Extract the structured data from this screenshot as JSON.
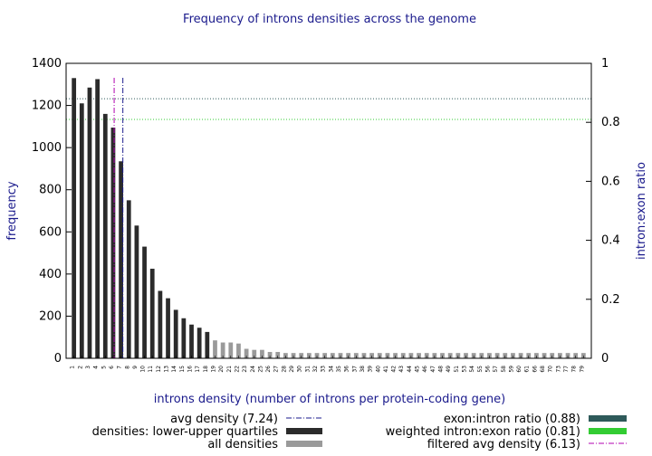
{
  "chart_data": {
    "type": "bar",
    "title": "Frequency of introns densities across the genome",
    "xlabel": "introns density (number of introns per protein-coding gene)",
    "ylabel": "frequency",
    "y2label": "intron:exon ratio",
    "ylim": [
      0,
      1400
    ],
    "y2lim": [
      0,
      1
    ],
    "yticks": [
      "0",
      "200",
      "400",
      "600",
      "800",
      "1000",
      "1200",
      "1400"
    ],
    "y2ticks": [
      "0",
      "0.2",
      "0.4",
      "0.6",
      "0.8",
      "1"
    ],
    "categories": [
      "1",
      "2",
      "3",
      "4",
      "5",
      "6",
      "7",
      "8",
      "9",
      "10",
      "11",
      "12",
      "13",
      "14",
      "15",
      "16",
      "17",
      "18",
      "19",
      "20",
      "21",
      "22",
      "23",
      "24",
      "25",
      "26",
      "27",
      "28",
      "29",
      "30",
      "31",
      "32",
      "33",
      "34",
      "35",
      "36",
      "37",
      "38",
      "39",
      "40",
      "41",
      "42",
      "43",
      "44",
      "45",
      "46",
      "47",
      "48",
      "49",
      "51",
      "53",
      "54",
      "55",
      "56",
      "57",
      "58",
      "59",
      "60",
      "61",
      "66",
      "68",
      "70",
      "73",
      "77",
      "78",
      "79"
    ],
    "values": [
      1330,
      1210,
      1285,
      1325,
      1160,
      1095,
      935,
      750,
      630,
      530,
      425,
      320,
      285,
      230,
      190,
      160,
      145,
      125,
      85,
      75,
      75,
      70,
      45,
      40,
      40,
      30,
      30,
      25,
      25,
      25,
      25,
      25,
      25,
      25,
      25,
      25,
      25,
      25,
      25,
      25,
      25,
      25,
      25,
      25,
      25,
      25,
      25,
      25,
      25,
      25,
      25,
      25,
      25,
      25,
      25,
      25,
      25,
      25,
      25,
      25,
      25,
      25,
      25,
      25,
      25,
      25
    ],
    "quartile_range": [
      "1",
      "18"
    ],
    "avg_density": 7.24,
    "filtered_avg_density": 6.13,
    "exon_intron_ratio": 0.88,
    "weighted_intron_exon_ratio": 0.81,
    "legend": {
      "avg": "avg density (7.24)",
      "quartiles": "densities: lower-upper quartiles",
      "all": "all densities",
      "exon_intron": "exon:intron ratio (0.88)",
      "weighted": "weighted intron:exon ratio (0.81)",
      "filtered": "filtered avg density (6.13)"
    },
    "colors": {
      "quartile": "#2b2b2b",
      "all": "#9a9a9a",
      "avg_line": "#1a1a8c",
      "filtered_line": "#b000b0",
      "exon_intron_line": "#2e5a5a",
      "weighted_line": "#33cc33",
      "label_text": "#1a1a8c"
    },
    "legend_position": "bottom",
    "grid": false
  }
}
